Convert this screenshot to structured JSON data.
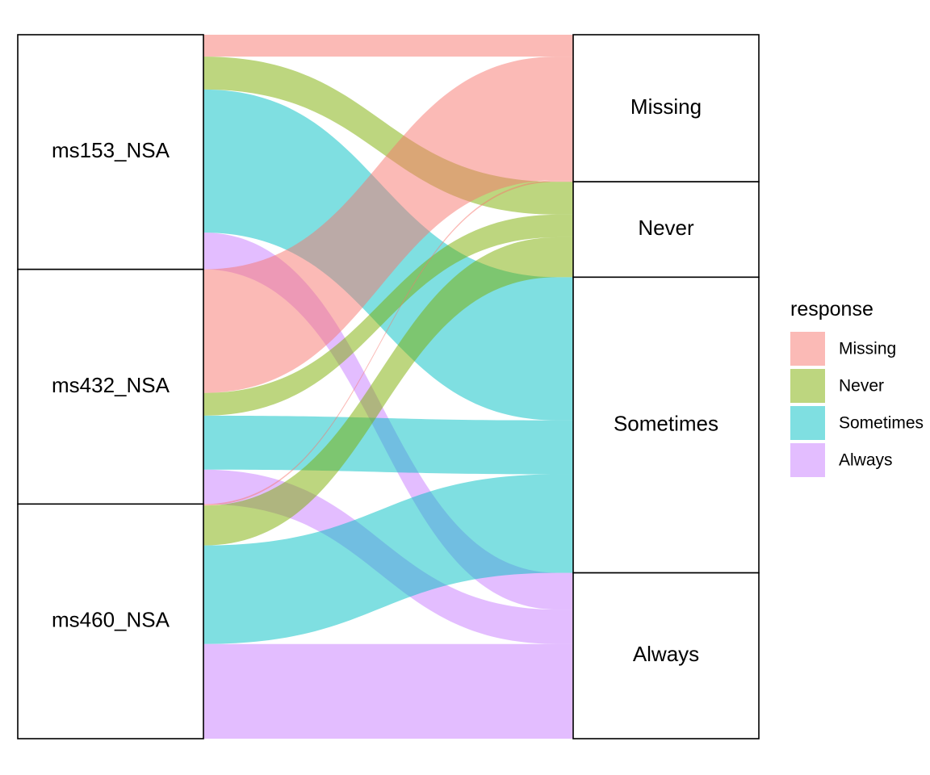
{
  "chart_data": {
    "type": "alluvial",
    "title": "",
    "legend": {
      "title": "response",
      "placement": "right",
      "items": [
        {
          "name": "Missing",
          "color": "#F8766D"
        },
        {
          "name": "Never",
          "color": "#7CAE00"
        },
        {
          "name": "Sometimes",
          "color": "#00BFC4"
        },
        {
          "name": "Always",
          "color": "#C77CFF"
        }
      ]
    },
    "left_axis": {
      "strata": [
        "ms153_NSA",
        "ms432_NSA",
        "ms460_NSA"
      ],
      "total_each": 30
    },
    "right_axis": {
      "strata": [
        "Missing",
        "Never",
        "Sometimes",
        "Always"
      ],
      "values": [
        18.8,
        12.2,
        37.8,
        21.2
      ]
    },
    "flows": [
      {
        "from": "ms153_NSA",
        "to": "Missing",
        "response": "Missing",
        "value": 2.8
      },
      {
        "from": "ms153_NSA",
        "to": "Never",
        "response": "Never",
        "value": 4.2
      },
      {
        "from": "ms153_NSA",
        "to": "Sometimes",
        "response": "Sometimes",
        "value": 18.3
      },
      {
        "from": "ms153_NSA",
        "to": "Always",
        "response": "Always",
        "value": 4.7
      },
      {
        "from": "ms432_NSA",
        "to": "Missing",
        "response": "Missing",
        "value": 15.8
      },
      {
        "from": "ms432_NSA",
        "to": "Never",
        "response": "Never",
        "value": 2.9
      },
      {
        "from": "ms432_NSA",
        "to": "Sometimes",
        "response": "Sometimes",
        "value": 6.9
      },
      {
        "from": "ms432_NSA",
        "to": "Always",
        "response": "Always",
        "value": 4.4
      },
      {
        "from": "ms460_NSA",
        "to": "Missing",
        "response": "Missing",
        "value": 0.2
      },
      {
        "from": "ms460_NSA",
        "to": "Never",
        "response": "Never",
        "value": 5.1
      },
      {
        "from": "ms460_NSA",
        "to": "Sometimes",
        "response": "Sometimes",
        "value": 12.6
      },
      {
        "from": "ms460_NSA",
        "to": "Always",
        "response": "Always",
        "value": 12.1
      }
    ]
  }
}
